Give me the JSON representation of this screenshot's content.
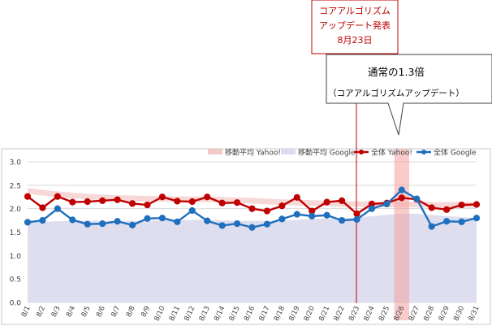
{
  "callouts": {
    "event": {
      "line1": "コアアルゴリズム",
      "line2": "アップデート発表",
      "line3": "8月23日"
    },
    "ratio": {
      "title": "通常の1.3倍",
      "subtitle": "（コアアルゴリズムアップデート）"
    }
  },
  "colors": {
    "yahoo_line": "#c00000",
    "google_line": "#1f6fbf",
    "yahoo_band": "#f6c9c9",
    "google_area": "#dcdcee",
    "event_line": "#c00000",
    "highlight": "#f4a0a0"
  },
  "chart_data": {
    "type": "line",
    "categories": [
      "8/1",
      "8/2",
      "8/3",
      "8/4",
      "8/5",
      "8/6",
      "8/7",
      "8/8",
      "8/9",
      "8/10",
      "8/11",
      "8/12",
      "8/13",
      "8/14",
      "8/15",
      "8/16",
      "8/17",
      "8/18",
      "8/19",
      "8/20",
      "8/21",
      "8/22",
      "8/23",
      "8/24",
      "8/25",
      "8/26",
      "8/27",
      "8/28",
      "8/29",
      "8/30",
      "8/31"
    ],
    "ylim": [
      0,
      3.0
    ],
    "yticks": [
      "0.0",
      "0.5",
      "1.0",
      "1.5",
      "2.0",
      "2.5",
      "3.0"
    ],
    "series": [
      {
        "name": "移動平均 Yahoo!",
        "kind": "area",
        "values": [
          2.38,
          2.34,
          2.31,
          2.28,
          2.26,
          2.24,
          2.23,
          2.22,
          2.21,
          2.21,
          2.2,
          2.2,
          2.2,
          2.19,
          2.18,
          2.17,
          2.15,
          2.14,
          2.13,
          2.12,
          2.11,
          2.1,
          2.1,
          2.09,
          2.09,
          2.09,
          2.09,
          2.08,
          2.08,
          2.08,
          2.08
        ]
      },
      {
        "name": "移動平均 Google",
        "kind": "area",
        "values": [
          1.71,
          1.72,
          1.73,
          1.74,
          1.74,
          1.74,
          1.74,
          1.74,
          1.74,
          1.75,
          1.75,
          1.76,
          1.76,
          1.75,
          1.74,
          1.74,
          1.74,
          1.75,
          1.76,
          1.78,
          1.79,
          1.8,
          1.81,
          1.84,
          1.87,
          1.89,
          1.89,
          1.87,
          1.84,
          1.82,
          1.8
        ]
      },
      {
        "name": "全体 Yahoo!",
        "kind": "line",
        "values": [
          2.26,
          2.02,
          2.26,
          2.14,
          2.15,
          2.17,
          2.19,
          2.11,
          2.08,
          2.25,
          2.16,
          2.15,
          2.25,
          2.12,
          2.13,
          2.0,
          1.95,
          2.06,
          2.24,
          1.95,
          2.14,
          2.17,
          1.89,
          2.1,
          2.12,
          2.23,
          2.2,
          2.02,
          1.98,
          2.08,
          2.09
        ]
      },
      {
        "name": "全体 Google",
        "kind": "line",
        "values": [
          1.71,
          1.75,
          2.0,
          1.76,
          1.67,
          1.68,
          1.73,
          1.65,
          1.79,
          1.8,
          1.72,
          1.96,
          1.74,
          1.64,
          1.68,
          1.6,
          1.67,
          1.78,
          1.88,
          1.84,
          1.86,
          1.75,
          1.77,
          2.0,
          2.1,
          2.4,
          2.21,
          1.62,
          1.73,
          1.72,
          1.8
        ]
      }
    ],
    "event_marker": {
      "category": "8/23",
      "text_ref": "callouts.event"
    },
    "highlight_category": "8/26",
    "legend_position": "top",
    "grid": true
  }
}
